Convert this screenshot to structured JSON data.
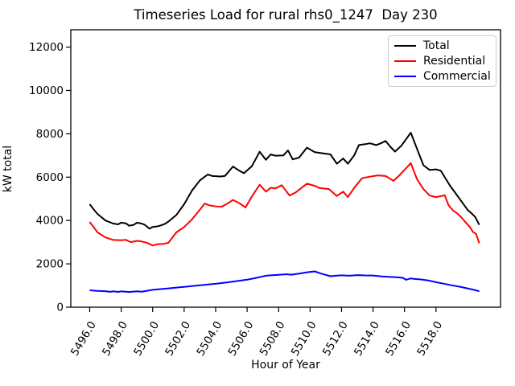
{
  "chart_data": {
    "type": "line",
    "title": "Timeseries Load for rural rhs0_1247  Day 230",
    "xlabel": "Hour of Year",
    "ylabel": "kW total",
    "xlim": [
      5494.8,
      5522.1
    ],
    "ylim": [
      0,
      12800
    ],
    "grid": false,
    "background": "#ffffff",
    "legend_position": "upper right",
    "x_ticks": {
      "values": [
        5496,
        5498,
        5500,
        5502,
        5504,
        5506,
        5508,
        5510,
        5512,
        5514,
        5516,
        5518
      ],
      "labels": [
        "5496.0",
        "5498.0",
        "5500.0",
        "5502.0",
        "5504.0",
        "5506.0",
        "5508.0",
        "5510.0",
        "5512.0",
        "5514.0",
        "5516.0",
        "5518.0"
      ],
      "rotation_deg": 59
    },
    "y_ticks": {
      "values": [
        0,
        2000,
        4000,
        6000,
        8000,
        10000,
        12000
      ],
      "labels": [
        "0",
        "2000",
        "4000",
        "6000",
        "8000",
        "10000",
        "12000"
      ]
    },
    "series": [
      {
        "name": "Total",
        "color": "#000000",
        "points": [
          [
            5496.0,
            4750
          ],
          [
            5496.3,
            4470
          ],
          [
            5496.5,
            4300
          ],
          [
            5497.0,
            4000
          ],
          [
            5497.5,
            3860
          ],
          [
            5497.8,
            3820
          ],
          [
            5498.0,
            3900
          ],
          [
            5498.3,
            3870
          ],
          [
            5498.5,
            3760
          ],
          [
            5498.8,
            3800
          ],
          [
            5499.0,
            3900
          ],
          [
            5499.3,
            3860
          ],
          [
            5499.5,
            3800
          ],
          [
            5499.8,
            3620
          ],
          [
            5500.0,
            3700
          ],
          [
            5500.3,
            3730
          ],
          [
            5500.5,
            3770
          ],
          [
            5500.8,
            3850
          ],
          [
            5501.0,
            3950
          ],
          [
            5501.5,
            4250
          ],
          [
            5502.0,
            4750
          ],
          [
            5502.5,
            5380
          ],
          [
            5503.0,
            5850
          ],
          [
            5503.5,
            6120
          ],
          [
            5503.8,
            6050
          ],
          [
            5504.3,
            6030
          ],
          [
            5504.6,
            6060
          ],
          [
            5505.1,
            6490
          ],
          [
            5505.5,
            6300
          ],
          [
            5505.8,
            6180
          ],
          [
            5506.3,
            6500
          ],
          [
            5506.8,
            7170
          ],
          [
            5507.2,
            6800
          ],
          [
            5507.5,
            7050
          ],
          [
            5507.8,
            6990
          ],
          [
            5508.3,
            7000
          ],
          [
            5508.6,
            7230
          ],
          [
            5508.9,
            6820
          ],
          [
            5509.3,
            6900
          ],
          [
            5509.8,
            7360
          ],
          [
            5510.3,
            7150
          ],
          [
            5510.8,
            7100
          ],
          [
            5511.3,
            7050
          ],
          [
            5511.7,
            6620
          ],
          [
            5512.1,
            6860
          ],
          [
            5512.4,
            6620
          ],
          [
            5512.8,
            7000
          ],
          [
            5513.1,
            7480
          ],
          [
            5513.5,
            7520
          ],
          [
            5513.8,
            7560
          ],
          [
            5514.2,
            7480
          ],
          [
            5514.5,
            7560
          ],
          [
            5514.8,
            7670
          ],
          [
            5515.1,
            7400
          ],
          [
            5515.4,
            7180
          ],
          [
            5515.8,
            7450
          ],
          [
            5516.4,
            8050
          ],
          [
            5516.8,
            7300
          ],
          [
            5517.2,
            6550
          ],
          [
            5517.6,
            6330
          ],
          [
            5518.0,
            6360
          ],
          [
            5518.3,
            6300
          ],
          [
            5518.6,
            5950
          ],
          [
            5518.9,
            5600
          ],
          [
            5519.2,
            5300
          ],
          [
            5519.5,
            5000
          ],
          [
            5519.8,
            4700
          ],
          [
            5520.0,
            4500
          ],
          [
            5520.3,
            4300
          ],
          [
            5520.5,
            4150
          ],
          [
            5520.75,
            3800
          ]
        ]
      },
      {
        "name": "Residential",
        "color": "#ff0000",
        "points": [
          [
            5496.0,
            3930
          ],
          [
            5496.3,
            3650
          ],
          [
            5496.5,
            3450
          ],
          [
            5497.0,
            3220
          ],
          [
            5497.5,
            3100
          ],
          [
            5498.0,
            3090
          ],
          [
            5498.3,
            3110
          ],
          [
            5498.6,
            3000
          ],
          [
            5499.0,
            3060
          ],
          [
            5499.3,
            3030
          ],
          [
            5499.6,
            2980
          ],
          [
            5500.0,
            2850
          ],
          [
            5500.3,
            2900
          ],
          [
            5500.7,
            2920
          ],
          [
            5501.0,
            2970
          ],
          [
            5501.5,
            3450
          ],
          [
            5502.0,
            3700
          ],
          [
            5502.5,
            4050
          ],
          [
            5503.0,
            4500
          ],
          [
            5503.3,
            4780
          ],
          [
            5503.6,
            4700
          ],
          [
            5504.0,
            4650
          ],
          [
            5504.4,
            4640
          ],
          [
            5504.8,
            4800
          ],
          [
            5505.1,
            4950
          ],
          [
            5505.5,
            4800
          ],
          [
            5505.9,
            4600
          ],
          [
            5506.3,
            5100
          ],
          [
            5506.8,
            5650
          ],
          [
            5507.2,
            5330
          ],
          [
            5507.5,
            5510
          ],
          [
            5507.8,
            5480
          ],
          [
            5508.2,
            5630
          ],
          [
            5508.7,
            5150
          ],
          [
            5509.1,
            5300
          ],
          [
            5509.8,
            5700
          ],
          [
            5510.3,
            5600
          ],
          [
            5510.6,
            5500
          ],
          [
            5511.2,
            5450
          ],
          [
            5511.7,
            5130
          ],
          [
            5512.1,
            5330
          ],
          [
            5512.4,
            5080
          ],
          [
            5512.8,
            5500
          ],
          [
            5513.3,
            5950
          ],
          [
            5513.8,
            6020
          ],
          [
            5514.3,
            6080
          ],
          [
            5514.8,
            6050
          ],
          [
            5515.3,
            5830
          ],
          [
            5515.7,
            6100
          ],
          [
            5516.4,
            6650
          ],
          [
            5516.8,
            5900
          ],
          [
            5517.2,
            5450
          ],
          [
            5517.6,
            5150
          ],
          [
            5518.0,
            5080
          ],
          [
            5518.3,
            5120
          ],
          [
            5518.55,
            5170
          ],
          [
            5518.8,
            4700
          ],
          [
            5519.1,
            4450
          ],
          [
            5519.35,
            4330
          ],
          [
            5519.6,
            4150
          ],
          [
            5519.9,
            3900
          ],
          [
            5520.15,
            3700
          ],
          [
            5520.35,
            3470
          ],
          [
            5520.55,
            3380
          ],
          [
            5520.75,
            2950
          ]
        ]
      },
      {
        "name": "Commercial",
        "color": "#0000ff",
        "points": [
          [
            5496.0,
            780
          ],
          [
            5496.5,
            750
          ],
          [
            5497.0,
            740
          ],
          [
            5497.3,
            710
          ],
          [
            5497.5,
            730
          ],
          [
            5497.8,
            705
          ],
          [
            5498.0,
            730
          ],
          [
            5498.5,
            700
          ],
          [
            5499.0,
            730
          ],
          [
            5499.3,
            715
          ],
          [
            5499.5,
            740
          ],
          [
            5500.0,
            800
          ],
          [
            5500.5,
            835
          ],
          [
            5501.0,
            870
          ],
          [
            5501.5,
            905
          ],
          [
            5502.0,
            940
          ],
          [
            5502.5,
            975
          ],
          [
            5503.0,
            1010
          ],
          [
            5503.5,
            1045
          ],
          [
            5504.0,
            1080
          ],
          [
            5504.5,
            1120
          ],
          [
            5505.0,
            1170
          ],
          [
            5505.5,
            1220
          ],
          [
            5506.0,
            1270
          ],
          [
            5506.5,
            1340
          ],
          [
            5507.0,
            1420
          ],
          [
            5507.3,
            1460
          ],
          [
            5507.5,
            1470
          ],
          [
            5508.0,
            1490
          ],
          [
            5508.5,
            1520
          ],
          [
            5508.8,
            1500
          ],
          [
            5509.3,
            1550
          ],
          [
            5509.8,
            1610
          ],
          [
            5510.3,
            1650
          ],
          [
            5510.7,
            1550
          ],
          [
            5511.3,
            1430
          ],
          [
            5511.7,
            1455
          ],
          [
            5512.0,
            1470
          ],
          [
            5512.5,
            1450
          ],
          [
            5513.0,
            1480
          ],
          [
            5513.5,
            1465
          ],
          [
            5514.0,
            1460
          ],
          [
            5514.5,
            1425
          ],
          [
            5515.0,
            1400
          ],
          [
            5515.5,
            1380
          ],
          [
            5515.9,
            1355
          ],
          [
            5516.1,
            1265
          ],
          [
            5516.4,
            1330
          ],
          [
            5516.7,
            1300
          ],
          [
            5517.0,
            1285
          ],
          [
            5517.5,
            1235
          ],
          [
            5518.0,
            1155
          ],
          [
            5518.5,
            1085
          ],
          [
            5519.0,
            1010
          ],
          [
            5519.5,
            945
          ],
          [
            5520.0,
            870
          ],
          [
            5520.4,
            800
          ],
          [
            5520.75,
            735
          ]
        ]
      }
    ]
  }
}
